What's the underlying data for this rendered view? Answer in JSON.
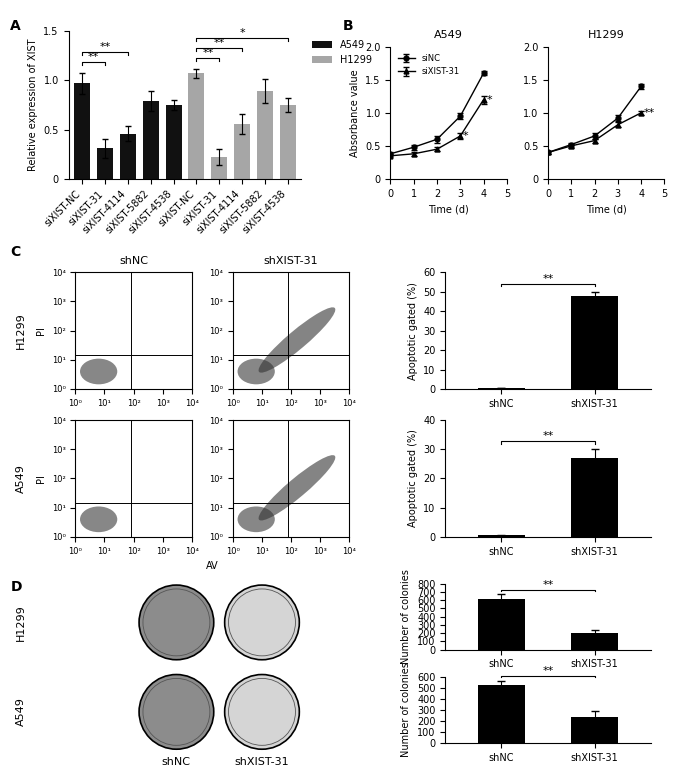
{
  "chart_data": [
    {
      "panel": "A",
      "type": "bar",
      "categories": [
        "siXIST-NC",
        "siXIST-31",
        "siXIST-4114",
        "siXIST-5882",
        "siXIST-4538",
        "siXIST-NC",
        "siXIST-31",
        "siXIST-4114",
        "siXIST-5882",
        "siXIST-4538"
      ],
      "series": [
        {
          "name": "A549",
          "color": "#111111",
          "values": [
            0.97,
            0.31,
            0.46,
            0.79,
            0.75,
            null,
            null,
            null,
            null,
            null
          ],
          "errors": [
            0.11,
            0.1,
            0.08,
            0.1,
            0.05,
            null,
            null,
            null,
            null,
            null
          ]
        },
        {
          "name": "H1299",
          "color": "#a6a6a6",
          "values": [
            null,
            null,
            null,
            null,
            null,
            1.07,
            0.22,
            0.56,
            0.89,
            0.75
          ],
          "errors": [
            null,
            null,
            null,
            null,
            null,
            0.05,
            0.08,
            0.1,
            0.12,
            0.07
          ]
        }
      ],
      "ylabel": "Relative expression of XIST",
      "ylim": [
        0,
        1.5
      ],
      "yticks": [
        0,
        0.5,
        {
          "value": 1.0,
          "label": "1.0"
        },
        1.5
      ],
      "legend": "right",
      "significance": [
        {
          "from": 0,
          "to": 1,
          "label": "**"
        },
        {
          "from": 0,
          "to": 2,
          "label": "**"
        },
        {
          "from": 5,
          "to": 6,
          "label": "**"
        },
        {
          "from": 5,
          "to": 7,
          "label": "**"
        },
        {
          "from": 5,
          "to": 9,
          "label": "*"
        }
      ]
    },
    {
      "panel": "B",
      "type": "line",
      "title": "A549",
      "xlabel": "Time (d)",
      "ylabel": "Absorbance value",
      "x": [
        0,
        1,
        2,
        3,
        4
      ],
      "xlim": [
        0,
        5
      ],
      "xticks": [
        0,
        1,
        2,
        3,
        4,
        5
      ],
      "ylim": [
        0,
        2
      ],
      "yticks": [
        0,
        0.5,
        {
          "value": 1.0,
          "label": "1.0"
        },
        1.5,
        {
          "value": 2.0,
          "label": "2.0"
        }
      ],
      "legend": "upper left",
      "series": [
        {
          "name": "siNC",
          "color": "#000000",
          "marker": "circle",
          "values": [
            0.38,
            0.48,
            0.6,
            0.95,
            1.6
          ],
          "errors": [
            0.03,
            0.04,
            0.05,
            0.04,
            0.03
          ]
        },
        {
          "name": "siXIST-31",
          "color": "#000000",
          "marker": "triangle",
          "values": [
            0.35,
            0.38,
            0.45,
            0.65,
            1.2
          ],
          "errors": [
            0.02,
            0.03,
            0.03,
            0.05,
            0.06
          ]
        }
      ],
      "significance": [
        {
          "x": 3,
          "series": "siXIST-31",
          "label": "*"
        },
        {
          "x": 4,
          "series": "siXIST-31",
          "label": "*"
        }
      ]
    },
    {
      "type": "line",
      "title": "H1299",
      "xlabel": "Time (d)",
      "x": [
        0,
        1,
        2,
        3,
        4
      ],
      "xlim": [
        0,
        5
      ],
      "xticks": [
        0,
        1,
        2,
        3,
        4,
        5
      ],
      "ylim": [
        0,
        2
      ],
      "yticks": [
        0,
        0.5,
        {
          "value": 1.0,
          "label": "1.0"
        },
        1.5,
        {
          "value": 2.0,
          "label": "2.0"
        }
      ],
      "series": [
        {
          "name": "siNC",
          "color": "#000000",
          "marker": "circle",
          "values": [
            0.4,
            0.52,
            0.65,
            0.92,
            1.4
          ],
          "errors": [
            0.02,
            0.03,
            0.04,
            0.05,
            0.04
          ]
        },
        {
          "name": "siXIST-31",
          "color": "#000000",
          "marker": "triangle",
          "values": [
            0.4,
            0.5,
            0.58,
            0.82,
            1.0
          ],
          "errors": [
            0.02,
            0.03,
            0.03,
            0.04,
            0.03
          ]
        }
      ],
      "significance": [
        {
          "x": 4,
          "series": "siXIST-31",
          "label": "**"
        }
      ]
    },
    {
      "panel": "C",
      "type": "flow_cytometry",
      "rows": [
        "H1299",
        "A549"
      ],
      "columns": [
        "shNC",
        "shXIST-31"
      ],
      "xlabel": "AV",
      "ylabel": "PI",
      "log": true,
      "xlim": [
        1,
        10000
      ],
      "ylim": [
        1,
        10000
      ],
      "xticks": [
        {
          "value": 1,
          "label": "10⁰"
        },
        {
          "value": 10,
          "label": "10¹"
        },
        {
          "value": 100,
          "label": "10²"
        },
        {
          "value": 1000,
          "label": "10³"
        },
        {
          "value": 10000,
          "label": "10⁴"
        }
      ],
      "yticks": [
        {
          "value": 1,
          "label": "10⁰"
        },
        {
          "value": 10,
          "label": "10¹"
        },
        {
          "value": 100,
          "label": "10²"
        },
        {
          "value": 1000,
          "label": "10³"
        },
        {
          "value": 10000,
          "label": "10⁴"
        }
      ],
      "gate": {
        "x": 80,
        "y": 15
      }
    },
    {
      "type": "bar",
      "categories": [
        "shNC",
        "shXIST-31"
      ],
      "values": [
        0.5,
        48
      ],
      "errors": [
        0.2,
        2
      ],
      "color": "#000000",
      "ylabel": "Apoptotic gated (%)",
      "ylim": [
        0,
        60
      ],
      "yticks": [
        0,
        10,
        20,
        30,
        40,
        50,
        60
      ],
      "significance": [
        {
          "from": 0,
          "to": 1,
          "label": "**"
        }
      ]
    },
    {
      "type": "bar",
      "categories": [
        "shNC",
        "shXIST-31"
      ],
      "values": [
        0.5,
        27
      ],
      "errors": [
        0.2,
        3
      ],
      "color": "#000000",
      "ylabel": "Apoptotic gated (%)",
      "ylim": [
        0,
        40
      ],
      "yticks": [
        0,
        10,
        20,
        30,
        40
      ],
      "significance": [
        {
          "from": 0,
          "to": 1,
          "label": "**"
        }
      ]
    },
    {
      "panel": "D",
      "type": "image",
      "rows": [
        "H1299",
        "A549"
      ],
      "columns": [
        "shNC",
        "shXIST-31"
      ]
    },
    {
      "type": "bar",
      "categories": [
        "shNC",
        "shXIST-31"
      ],
      "values": [
        610,
        200
      ],
      "errors": [
        60,
        35
      ],
      "color": "#000000",
      "ylabel": "Number of colonies",
      "ylim": [
        0,
        800
      ],
      "yticks": [
        0,
        100,
        200,
        300,
        400,
        500,
        600,
        700,
        800
      ],
      "significance": [
        {
          "from": 0,
          "to": 1,
          "label": "**"
        }
      ]
    },
    {
      "type": "bar",
      "categories": [
        "shNC",
        "shXIST-31"
      ],
      "values": [
        530,
        240
      ],
      "errors": [
        35,
        50
      ],
      "color": "#000000",
      "ylabel": "Number of colonies",
      "ylim": [
        0,
        600
      ],
      "yticks": [
        0,
        100,
        200,
        300,
        400,
        500,
        600
      ],
      "significance": [
        {
          "from": 0,
          "to": 1,
          "label": "**"
        }
      ]
    }
  ]
}
